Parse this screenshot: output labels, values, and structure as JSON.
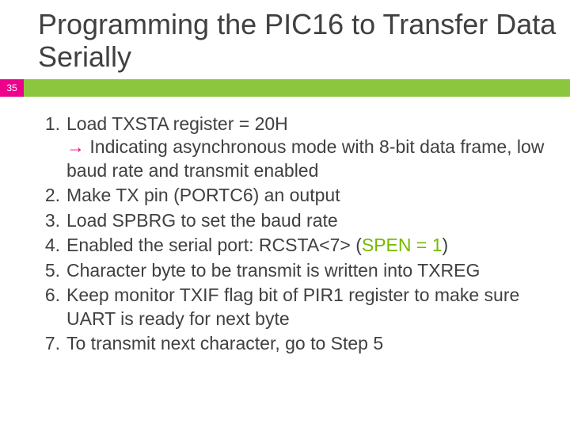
{
  "page_number": "35",
  "title": "Programming the PIC16 to Transfer Data Serially",
  "colors": {
    "accent_green": "#8cc63f",
    "accent_pink": "#ec008c",
    "text_gray": "#404040",
    "text_green": "#76b900"
  },
  "items": {
    "i1_main": "Load TXSTA register = 20H",
    "i1_arrow": "→",
    "i1_sub": " Indicating asynchronous mode with 8-bit data frame, low baud rate and transmit enabled",
    "i2": "Make TX pin (PORTC6) an output",
    "i3": "Load SPBRG to set the baud rate",
    "i4_a": "Enabled the serial port: RCSTA<7> (",
    "i4_b": "SPEN = 1",
    "i4_c": ")",
    "i5": "Character byte to be transmit is written into TXREG",
    "i6": "Keep monitor TXIF flag bit of PIR1 register to make sure UART is ready for next byte",
    "i7": "To transmit next character, go to Step 5"
  }
}
